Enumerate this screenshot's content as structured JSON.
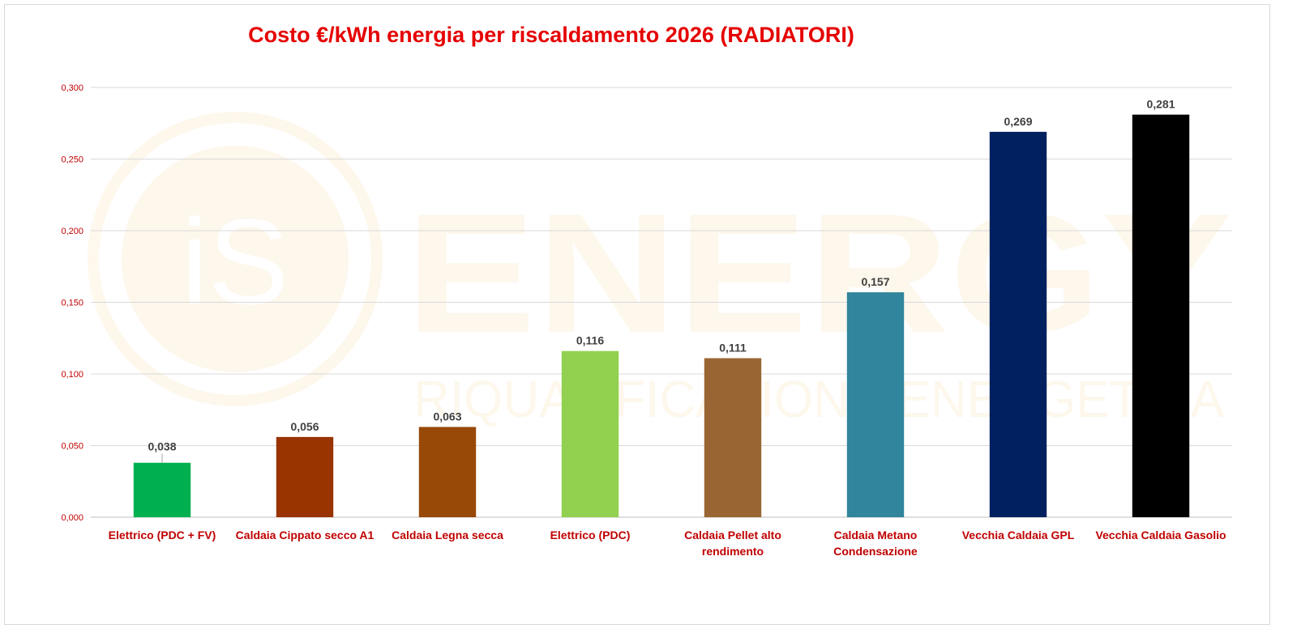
{
  "chart_data": {
    "type": "bar",
    "title": "Costo €/kWh energia per riscaldamento 2026 (RADIATORI)",
    "xlabel": "",
    "ylabel": "",
    "ylim": [
      0,
      0.3
    ],
    "yticks": [
      0,
      0.05,
      0.1,
      0.15,
      0.2,
      0.25,
      0.3
    ],
    "ytick_labels": [
      "0,000",
      "0,050",
      "0,100",
      "0,150",
      "0,200",
      "0,250",
      "0,300"
    ],
    "grid": true,
    "legend": "none",
    "categories": [
      [
        "Elettrico (PDC + FV)"
      ],
      [
        "Caldaia Cippato secco A1"
      ],
      [
        "Caldaia Legna secca"
      ],
      [
        "Elettrico (PDC)"
      ],
      [
        "Caldaia Pellet alto",
        "rendimento"
      ],
      [
        "Caldaia Metano",
        "Condensazione"
      ],
      [
        "Vecchia Caldaia GPL"
      ],
      [
        "Vecchia Caldaia Gasolio"
      ]
    ],
    "values": [
      0.038,
      0.056,
      0.063,
      0.116,
      0.111,
      0.157,
      0.269,
      0.281
    ],
    "value_labels": [
      "0,038",
      "0,056",
      "0,063",
      "0,116",
      "0,111",
      "0,157",
      "0,269",
      "0,281"
    ],
    "colors": [
      "#00b050",
      "#993300",
      "#984807",
      "#92d050",
      "#996633",
      "#31859c",
      "#002060",
      "#000000"
    ]
  },
  "watermark": {
    "logo_text": "iS",
    "brand_text": "ENERGY",
    "tagline": "RIQUALIFICAZIONE ENERGETICA"
  }
}
